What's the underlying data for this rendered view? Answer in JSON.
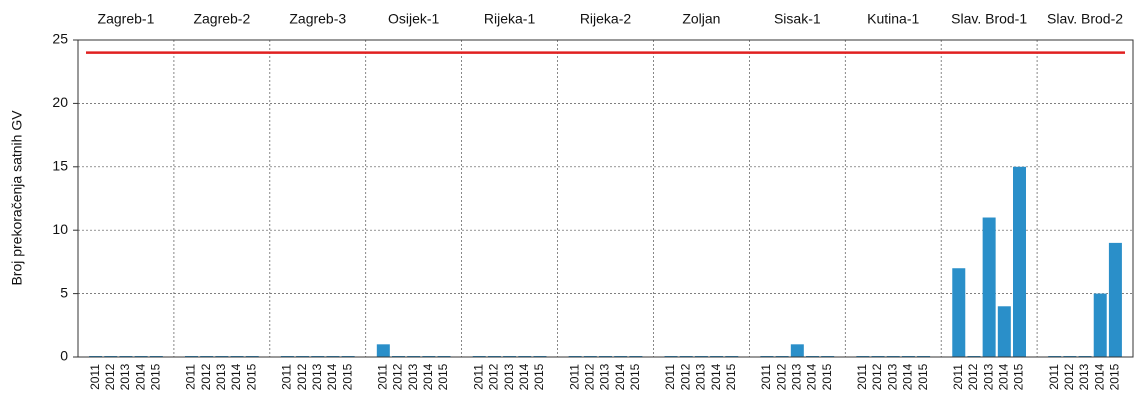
{
  "chart_data": {
    "type": "bar",
    "ylabel": "Broj prekoračenja satnih GV",
    "color": "#2a8fc9",
    "threshold": 24,
    "threshold_color": "#e02020",
    "ylim": [
      0,
      25
    ],
    "yticks": [
      0,
      5,
      10,
      15,
      20,
      25
    ],
    "grid": true,
    "groups": [
      {
        "name": "Zagreb-1",
        "categories": [
          "2011",
          "2012",
          "2013",
          "2014",
          "2015"
        ],
        "values": [
          0,
          0,
          0,
          0,
          0
        ]
      },
      {
        "name": "Zagreb-2",
        "categories": [
          "2011",
          "2012",
          "2013",
          "2014",
          "2015"
        ],
        "values": [
          0,
          0,
          0,
          0,
          0
        ]
      },
      {
        "name": "Zagreb-3",
        "categories": [
          "2011",
          "2012",
          "2013",
          "2014",
          "2015"
        ],
        "values": [
          0,
          0,
          0,
          0,
          0
        ]
      },
      {
        "name": "Osijek-1",
        "categories": [
          "2011",
          "2012",
          "2013",
          "2014",
          "2015"
        ],
        "values": [
          1,
          0,
          0,
          0,
          0
        ]
      },
      {
        "name": "Rijeka-1",
        "categories": [
          "2011",
          "2012",
          "2013",
          "2014",
          "2015"
        ],
        "values": [
          0,
          0,
          0,
          0,
          0
        ]
      },
      {
        "name": "Rijeka-2",
        "categories": [
          "2011",
          "2012",
          "2013",
          "2014",
          "2015"
        ],
        "values": [
          0,
          0,
          0,
          0,
          0
        ]
      },
      {
        "name": "Zoljan",
        "categories": [
          "2011",
          "2012",
          "2013",
          "2014",
          "2015"
        ],
        "values": [
          0,
          0,
          0,
          0,
          0
        ]
      },
      {
        "name": "Sisak-1",
        "categories": [
          "2011",
          "2012",
          "2013",
          "2014",
          "2015"
        ],
        "values": [
          0,
          0,
          1,
          0,
          0
        ]
      },
      {
        "name": "Kutina-1",
        "categories": [
          "2011",
          "2012",
          "2013",
          "2014",
          "2015"
        ],
        "values": [
          0,
          0,
          0,
          0,
          0
        ]
      },
      {
        "name": "Slav. Brod-1",
        "categories": [
          "2011",
          "2012",
          "2013",
          "2014",
          "2015"
        ],
        "values": [
          7,
          0,
          11,
          4,
          15
        ]
      },
      {
        "name": "Slav. Brod-2",
        "categories": [
          "2011",
          "2012",
          "2013",
          "2014",
          "2015"
        ],
        "values": [
          0,
          0,
          0,
          5,
          9
        ]
      }
    ]
  }
}
